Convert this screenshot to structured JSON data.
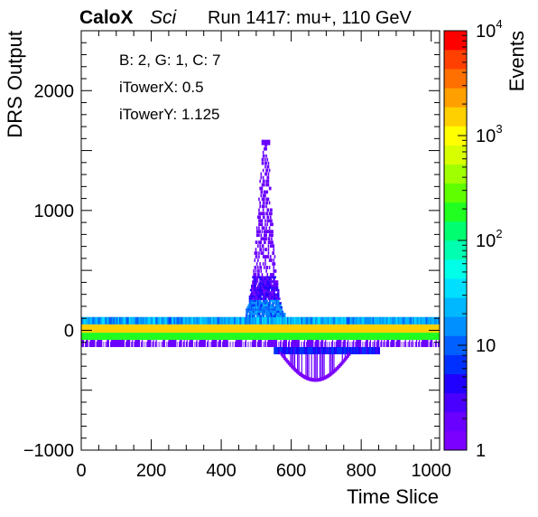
{
  "header": {
    "brand": "CaloX",
    "brand_sub": "Sci",
    "run_info": "Run 1417: mu+, 110 GeV"
  },
  "annotations": [
    "B: 2, G: 1, C: 7",
    "iTowerX: 0.5",
    "iTowerY: 1.125"
  ],
  "chart_data": {
    "type": "heatmap",
    "title": "Run 1417: mu+, 110 GeV",
    "xlabel": "Time Slice",
    "ylabel": "DRS Output",
    "zlabel": "Events",
    "xlim": [
      0,
      1024
    ],
    "ylim": [
      -1000,
      2500
    ],
    "zlim": [
      1,
      10000
    ],
    "zscale": "log",
    "x_ticks": [
      0,
      200,
      400,
      600,
      800,
      1000
    ],
    "x_tick_labels": [
      "0",
      "200",
      "400",
      "600",
      "800",
      "1000"
    ],
    "y_ticks": [
      -1000,
      0,
      1000,
      2000
    ],
    "y_tick_labels": [
      "−1000",
      "0",
      "1000",
      "2000"
    ],
    "z_tick_labels": [
      {
        "base": "1",
        "exp": "",
        "value": 1
      },
      {
        "base": "10",
        "exp": "",
        "value": 10
      },
      {
        "base": "10",
        "exp": "2",
        "value": 100
      },
      {
        "base": "10",
        "exp": "3",
        "value": 1000
      },
      {
        "base": "10",
        "exp": "4",
        "value": 10000
      }
    ],
    "bands": [
      {
        "name": "pedestal-upper",
        "x": [
          0,
          1024
        ],
        "y": [
          50,
          110
        ],
        "z": 15
      },
      {
        "name": "pedestal-core",
        "x": [
          0,
          1024
        ],
        "y": [
          -20,
          50
        ],
        "z": 1500
      },
      {
        "name": "pedestal-lower",
        "x": [
          0,
          1024
        ],
        "y": [
          -80,
          -20
        ],
        "z": 200
      },
      {
        "name": "pedestal-tail",
        "x": [
          0,
          1024
        ],
        "y": [
          -140,
          -80
        ],
        "z": 2
      }
    ],
    "pulse_peak": {
      "x": 525,
      "y": 1570
    },
    "pulse_range_x": [
      470,
      580
    ],
    "undershoot": {
      "x": [
        550,
        850
      ],
      "min_y": -430
    }
  },
  "palette": [
    "#7b00ff",
    "#6a00ff",
    "#4a00ff",
    "#2000ff",
    "#0030ff",
    "#0060ff",
    "#0090ff",
    "#00b8ff",
    "#00dfff",
    "#00ffe8",
    "#00ffb0",
    "#00ff70",
    "#20ff20",
    "#60ff00",
    "#a0ff00",
    "#d8ff00",
    "#ffff00",
    "#ffd000",
    "#ffa000",
    "#ff7000",
    "#ff4000",
    "#ff0000"
  ]
}
